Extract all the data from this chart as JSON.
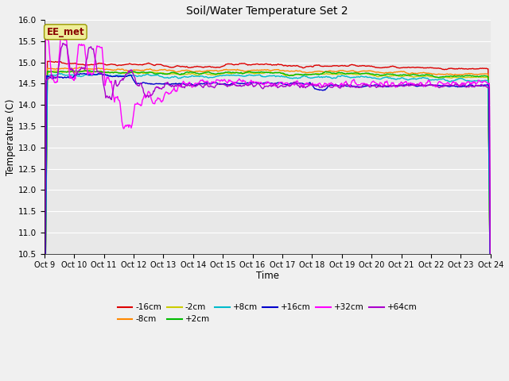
{
  "title": "Soil/Water Temperature Set 2",
  "xlabel": "Time",
  "ylabel": "Temperature (C)",
  "ylim": [
    10.5,
    16.0
  ],
  "yticks": [
    10.5,
    11.0,
    11.5,
    12.0,
    12.5,
    13.0,
    13.5,
    14.0,
    14.5,
    15.0,
    15.5,
    16.0
  ],
  "xtick_labels": [
    "Oct 9",
    "Oct 10",
    "Oct 11",
    "Oct 12",
    "Oct 13",
    "Oct 14",
    "Oct 15",
    "Oct 16",
    "Oct 17",
    "Oct 18",
    "Oct 19",
    "Oct 20",
    "Oct 21",
    "Oct 22",
    "Oct 23",
    "Oct 24"
  ],
  "background_color": "#f0f0f0",
  "plot_bg_color": "#e8e8e8",
  "grid_color": "#ffffff",
  "series_colors": {
    "-16cm": "#dd0000",
    "-8cm": "#ff8800",
    "-2cm": "#cccc00",
    "+2cm": "#00bb00",
    "+8cm": "#00bbcc",
    "+16cm": "#0000cc",
    "+32cm": "#ff00ff",
    "+64cm": "#aa00cc"
  },
  "annotation_text": "EE_met",
  "annotation_color": "#880000",
  "annotation_bg": "#eeee99",
  "annotation_border": "#999900",
  "legend_order": [
    "-16cm",
    "-8cm",
    "-2cm",
    "+2cm",
    "+8cm",
    "+16cm",
    "+32cm",
    "+64cm"
  ]
}
